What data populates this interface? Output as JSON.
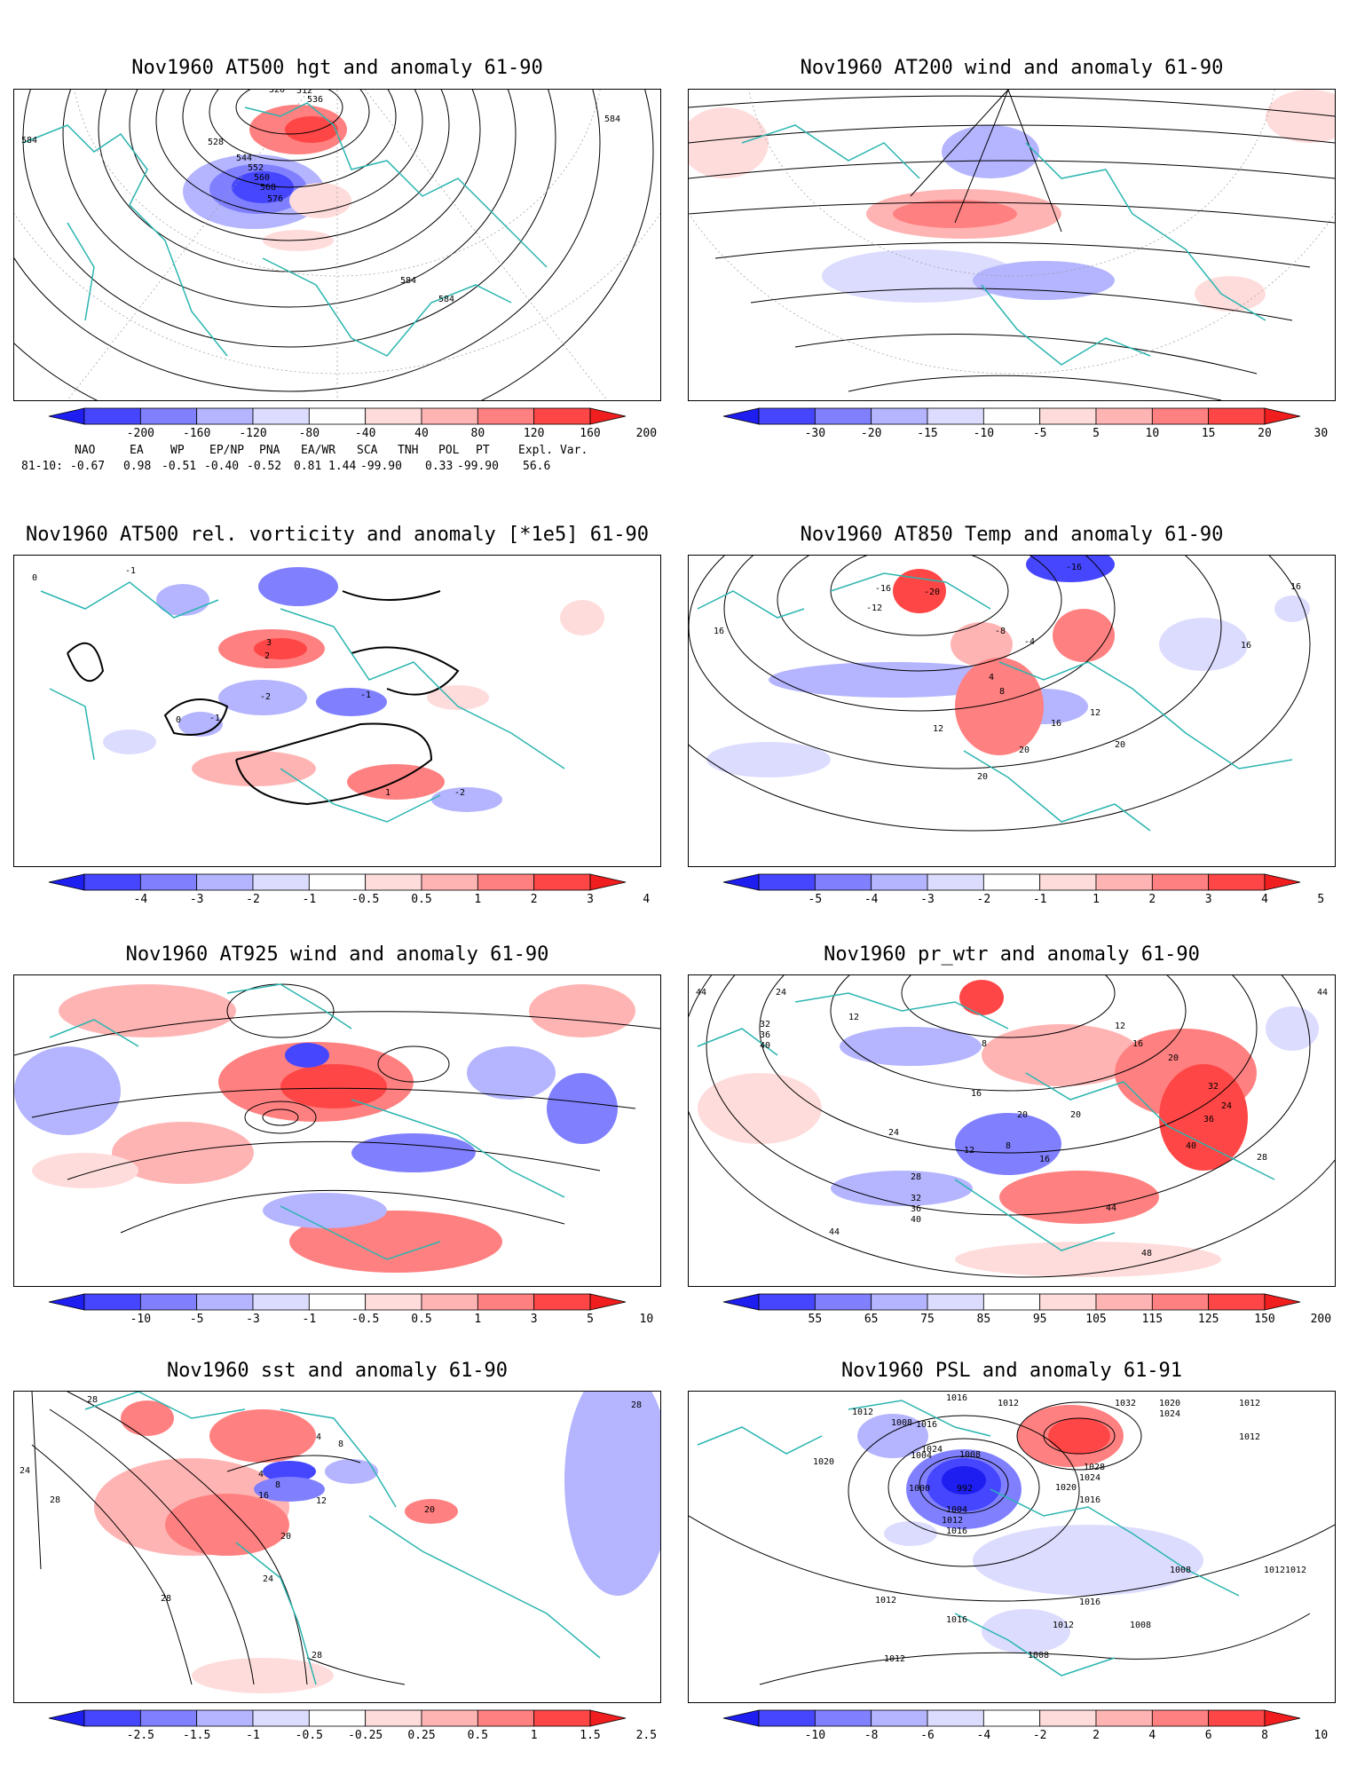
{
  "colors": {
    "coast": "#2ab5b0",
    "contour": "#000000",
    "ramp": [
      "#1e1ef0",
      "#4646ff",
      "#8080ff",
      "#b4b4ff",
      "#dcdcff",
      "#ffffff",
      "#ffdcdc",
      "#ffb4b4",
      "#ff8080",
      "#ff4646",
      "#f01e1e"
    ]
  },
  "panels": [
    {
      "id": "p1",
      "title": "Nov1960 AT500 hgt and anomaly 61-90",
      "contour_labels": [
        "512",
        "520",
        "536",
        "528",
        "544",
        "552",
        "560",
        "568",
        "576",
        "584",
        "584",
        "584",
        "584"
      ],
      "colorbar": [
        "-200",
        "-160",
        "-120",
        "-80",
        "-40",
        "40",
        "80",
        "120",
        "160",
        "200"
      ]
    },
    {
      "id": "p2",
      "title": "Nov1960 AT200 wind and anomaly 61-90",
      "contour_labels": [],
      "colorbar": [
        "-30",
        "-20",
        "-15",
        "-10",
        "-5",
        "5",
        "10",
        "15",
        "20",
        "30"
      ]
    },
    {
      "id": "p3",
      "title": "Nov1960 AT500 rel. vorticity and anomaly [*1e5] 61-90",
      "contour_labels": [
        "0",
        "-1",
        "3",
        "2",
        "-2",
        "-1",
        "0",
        "1",
        "-2",
        "-1"
      ],
      "colorbar": [
        "-4",
        "-3",
        "-2",
        "-1",
        "-0.5",
        "0.5",
        "1",
        "2",
        "3",
        "4"
      ]
    },
    {
      "id": "p4",
      "title": "Nov1960 AT850 Temp and anomaly 61-90",
      "contour_labels": [
        "-20",
        "-16",
        "-16",
        "-12",
        "-8",
        "-4",
        "4",
        "8",
        "12",
        "16",
        "16",
        "16",
        "20",
        "20",
        "20",
        "12",
        "16"
      ],
      "colorbar": [
        "-5",
        "-4",
        "-3",
        "-2",
        "-1",
        "1",
        "2",
        "3",
        "4",
        "5"
      ]
    },
    {
      "id": "p5",
      "title": "Nov1960 AT925 wind and anomaly 61-90",
      "contour_labels": [],
      "colorbar": [
        "-10",
        "-5",
        "-3",
        "-1",
        "-0.5",
        "0.5",
        "1",
        "3",
        "5",
        "10"
      ]
    },
    {
      "id": "p6",
      "title": "Nov1960 pr_wtr and anomaly 61-90",
      "contour_labels": [
        "44",
        "24",
        "32",
        "36",
        "40",
        "44",
        "12",
        "8",
        "16",
        "20",
        "24",
        "28",
        "32",
        "36",
        "40",
        "44",
        "12",
        "16",
        "20",
        "8",
        "12",
        "16",
        "20",
        "24",
        "28",
        "32",
        "36",
        "40",
        "44",
        "48"
      ],
      "colorbar": [
        "55",
        "65",
        "75",
        "85",
        "95",
        "105",
        "115",
        "125",
        "150",
        "200"
      ]
    },
    {
      "id": "p7",
      "title": "Nov1960 sst and anomaly 61-90",
      "contour_labels": [
        "28",
        "24",
        "28",
        "4",
        "8",
        "12",
        "16",
        "20",
        "24",
        "28",
        "28",
        "20",
        "4",
        "8",
        "28"
      ],
      "colorbar": [
        "-2.5",
        "-1.5",
        "-1",
        "-0.5",
        "-0.25",
        "0.25",
        "0.5",
        "1",
        "1.5",
        "2.5"
      ]
    },
    {
      "id": "p8",
      "title": "Nov1960 PSL and anomaly 61-91",
      "contour_labels": [
        "1016",
        "1012",
        "1008",
        "1016",
        "1012",
        "1032",
        "1020",
        "1024",
        "1012",
        "1020",
        "1004",
        "1000",
        "992",
        "1024",
        "1008",
        "1028",
        "1024",
        "1020",
        "1016",
        "1012",
        "1004",
        "1012",
        "1016",
        "1008",
        "1012",
        "1012",
        "1016",
        "1012",
        "1008",
        "1008",
        "1012",
        "1016",
        "1012"
      ],
      "colorbar": [
        "-10",
        "-8",
        "-6",
        "-4",
        "-2",
        "2",
        "4",
        "6",
        "8",
        "10"
      ]
    }
  ],
  "indices": {
    "headers": [
      "NAO",
      "EA",
      "WP",
      "EP/NP",
      "PNA",
      "EA/WR",
      "SCA",
      "TNH",
      "POL",
      "PT",
      "Expl. Var."
    ],
    "row_label": "81-10:",
    "values": [
      "-0.67",
      "0.98",
      "-0.51",
      "-0.40",
      "-0.52",
      "0.81",
      "1.44",
      "-99.90",
      "0.33",
      "-99.90",
      "56.6"
    ]
  }
}
